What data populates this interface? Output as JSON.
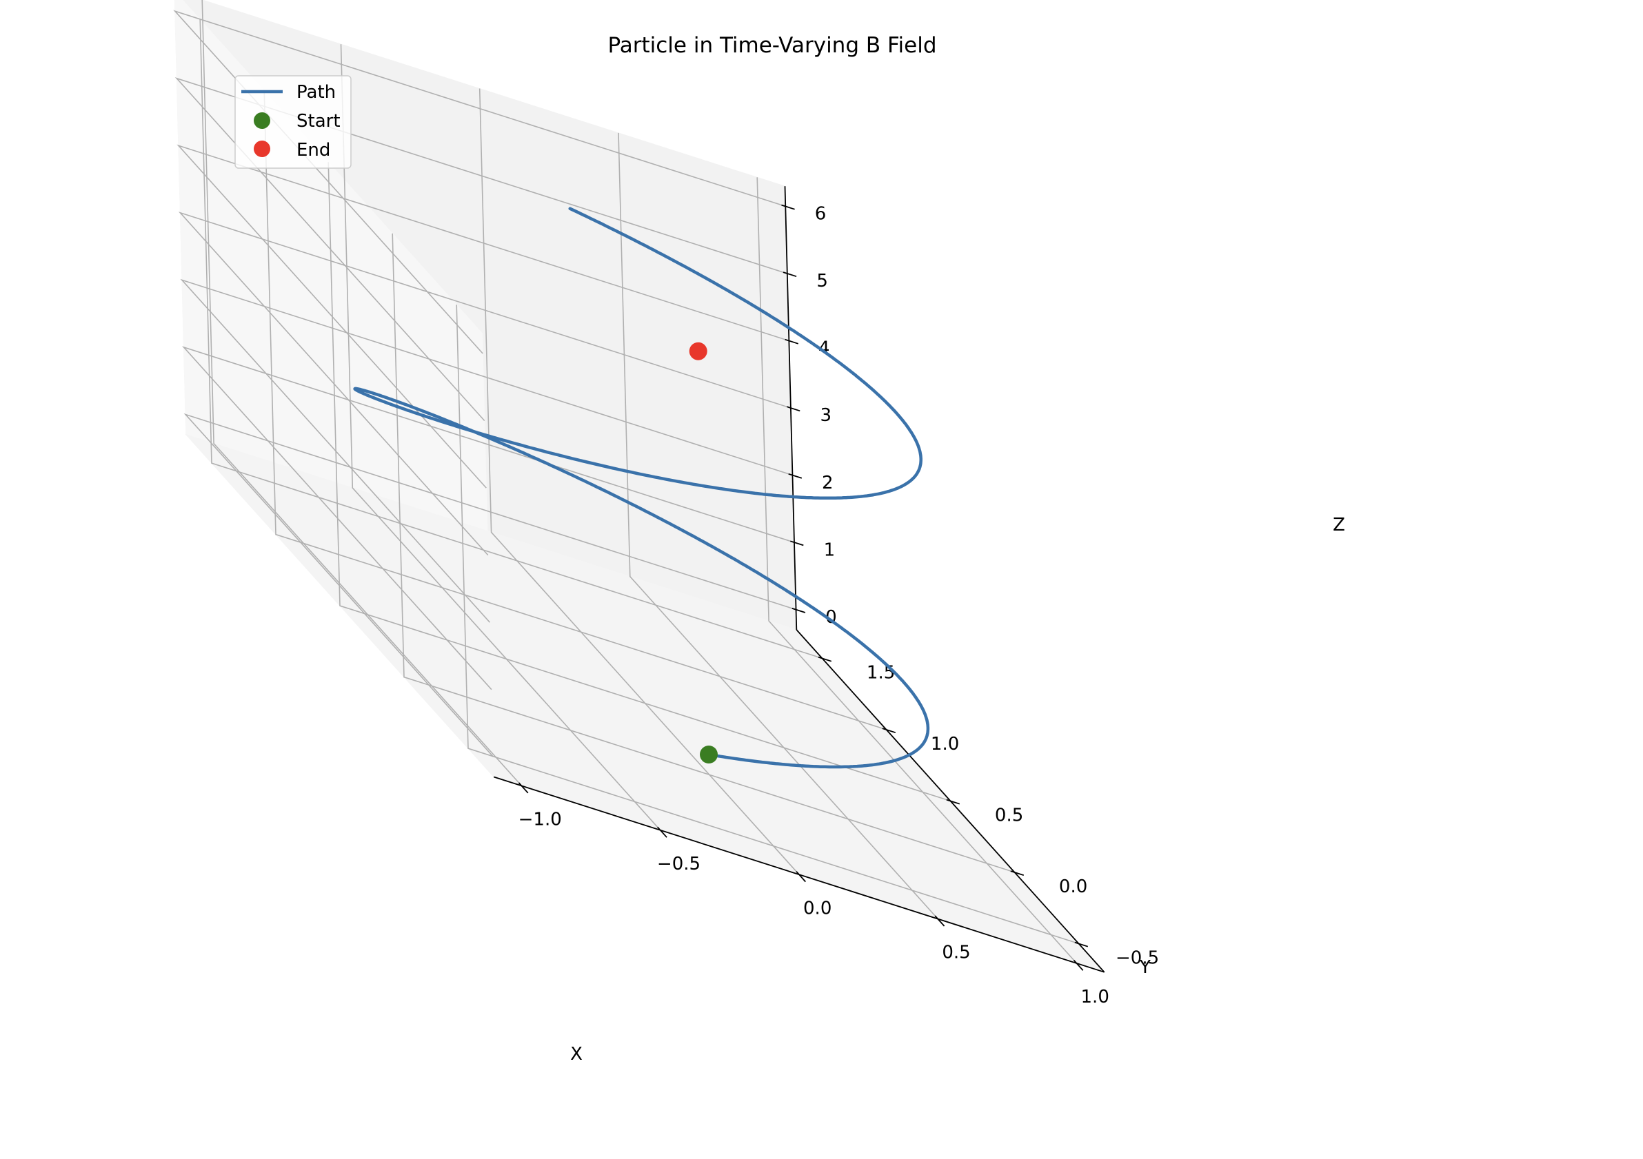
{
  "chart_data": {
    "type": "line3d",
    "title": "Particle in Time-Varying B Field",
    "xlabel": "X",
    "ylabel": "Y",
    "zlabel": "Z",
    "xlim": [
      -1.1,
      1.1
    ],
    "ylim": [
      -0.7,
      1.7
    ],
    "zlim": [
      -0.3,
      6.3
    ],
    "grid": true,
    "legend_position": "upper-left",
    "x_ticks": [
      {
        "value": -1.0,
        "label": "−1.0"
      },
      {
        "value": -0.5,
        "label": "−0.5"
      },
      {
        "value": 0.0,
        "label": "0.0"
      },
      {
        "value": 0.5,
        "label": "0.5"
      },
      {
        "value": 1.0,
        "label": "1.0"
      }
    ],
    "y_ticks": [
      {
        "value": -0.5,
        "label": "−0.5"
      },
      {
        "value": 0.0,
        "label": "0.0"
      },
      {
        "value": 0.5,
        "label": "0.5"
      },
      {
        "value": 1.0,
        "label": "1.0"
      },
      {
        "value": 1.5,
        "label": "1.5"
      }
    ],
    "z_ticks": [
      {
        "value": 0,
        "label": "0"
      },
      {
        "value": 1,
        "label": "1"
      },
      {
        "value": 2,
        "label": "2"
      },
      {
        "value": 3,
        "label": "3"
      },
      {
        "value": 4,
        "label": "4"
      },
      {
        "value": 5,
        "label": "5"
      },
      {
        "value": 6,
        "label": "6"
      }
    ],
    "series": [
      {
        "name": "Path",
        "kind": "line",
        "color": "#3a72aa"
      },
      {
        "name": "Start",
        "kind": "point",
        "color": "#3a7d22",
        "point": [
          0.0,
          0.0,
          0.0
        ]
      },
      {
        "name": "End",
        "kind": "point",
        "color": "#e8372b",
        "point": [
          0.0,
          0.0,
          6.0
        ]
      }
    ]
  }
}
